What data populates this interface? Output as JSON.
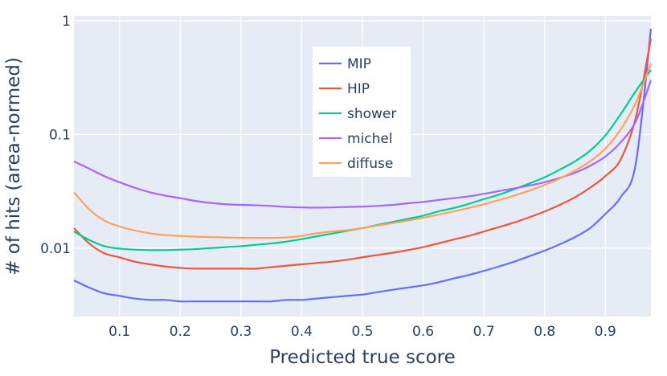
{
  "chart_data": {
    "type": "line",
    "title": "",
    "xlabel": "Predicted true score",
    "ylabel": "# of hits (area-normed)",
    "xlim": [
      0.025,
      0.975
    ],
    "ylim": [
      0.0025,
      1.1
    ],
    "y_scale": "log",
    "x_ticks": [
      0.1,
      0.2,
      0.3,
      0.4,
      0.5,
      0.6,
      0.7,
      0.8,
      0.9
    ],
    "x_tick_labels": [
      "0.1",
      "0.2",
      "0.3",
      "0.4",
      "0.5",
      "0.6",
      "0.7",
      "0.8",
      "0.9"
    ],
    "y_ticks": [
      0.01,
      0.1,
      1
    ],
    "y_tick_labels": [
      "0.01",
      "0.1",
      "1"
    ],
    "grid": true,
    "legend_position": "top-center",
    "x": [
      0.025,
      0.05,
      0.075,
      0.1,
      0.125,
      0.15,
      0.175,
      0.2,
      0.225,
      0.25,
      0.275,
      0.3,
      0.325,
      0.35,
      0.375,
      0.4,
      0.425,
      0.45,
      0.475,
      0.5,
      0.525,
      0.55,
      0.575,
      0.6,
      0.625,
      0.65,
      0.675,
      0.7,
      0.725,
      0.75,
      0.775,
      0.8,
      0.825,
      0.85,
      0.875,
      0.9,
      0.925,
      0.95,
      0.975
    ],
    "series": [
      {
        "name": "MIP",
        "color": "#636efa",
        "values": [
          0.0052,
          0.0045,
          0.004,
          0.0038,
          0.0036,
          0.0035,
          0.0035,
          0.0034,
          0.0034,
          0.0034,
          0.0034,
          0.0034,
          0.0034,
          0.0034,
          0.0035,
          0.0035,
          0.0036,
          0.0037,
          0.0038,
          0.0039,
          0.0041,
          0.0043,
          0.0045,
          0.0047,
          0.005,
          0.0054,
          0.0058,
          0.0063,
          0.0069,
          0.0076,
          0.0085,
          0.0095,
          0.0108,
          0.0125,
          0.015,
          0.02,
          0.028,
          0.055,
          0.85
        ]
      },
      {
        "name": "HIP",
        "color": "#ef553b",
        "values": [
          0.015,
          0.011,
          0.009,
          0.0083,
          0.0076,
          0.0072,
          0.0069,
          0.0067,
          0.0066,
          0.0066,
          0.0066,
          0.0066,
          0.0066,
          0.0068,
          0.007,
          0.0072,
          0.0074,
          0.0076,
          0.0079,
          0.0083,
          0.0087,
          0.0091,
          0.0096,
          0.0102,
          0.011,
          0.0119,
          0.0128,
          0.014,
          0.0153,
          0.0168,
          0.0187,
          0.021,
          0.024,
          0.028,
          0.034,
          0.043,
          0.06,
          0.14,
          0.7
        ]
      },
      {
        "name": "shower",
        "color": "#00cc96",
        "values": [
          0.014,
          0.0118,
          0.0104,
          0.0099,
          0.0097,
          0.0096,
          0.0096,
          0.0097,
          0.0098,
          0.01,
          0.0102,
          0.0104,
          0.0107,
          0.011,
          0.0114,
          0.012,
          0.0127,
          0.0134,
          0.0142,
          0.015,
          0.016,
          0.017,
          0.0181,
          0.0193,
          0.021,
          0.0225,
          0.0245,
          0.027,
          0.0295,
          0.033,
          0.037,
          0.042,
          0.049,
          0.058,
          0.072,
          0.098,
          0.15,
          0.24,
          0.37
        ]
      },
      {
        "name": "michel",
        "color": "#ab63fa",
        "values": [
          0.058,
          0.05,
          0.043,
          0.038,
          0.034,
          0.031,
          0.029,
          0.0275,
          0.026,
          0.025,
          0.0243,
          0.024,
          0.0238,
          0.0235,
          0.023,
          0.0228,
          0.0227,
          0.0228,
          0.023,
          0.0232,
          0.0235,
          0.024,
          0.0248,
          0.0255,
          0.0265,
          0.0275,
          0.0285,
          0.03,
          0.0318,
          0.0335,
          0.0355,
          0.038,
          0.0415,
          0.046,
          0.053,
          0.064,
          0.085,
          0.13,
          0.3
        ]
      },
      {
        "name": "diffuse",
        "color": "#ffa15a",
        "values": [
          0.031,
          0.022,
          0.0175,
          0.0155,
          0.0143,
          0.0135,
          0.013,
          0.0128,
          0.0126,
          0.0125,
          0.0124,
          0.0123,
          0.0123,
          0.0123,
          0.0124,
          0.0128,
          0.0135,
          0.014,
          0.0144,
          0.015,
          0.0158,
          0.0166,
          0.0175,
          0.0185,
          0.0197,
          0.021,
          0.0225,
          0.0243,
          0.0265,
          0.029,
          0.032,
          0.036,
          0.041,
          0.048,
          0.058,
          0.075,
          0.11,
          0.19,
          0.42
        ]
      }
    ]
  }
}
